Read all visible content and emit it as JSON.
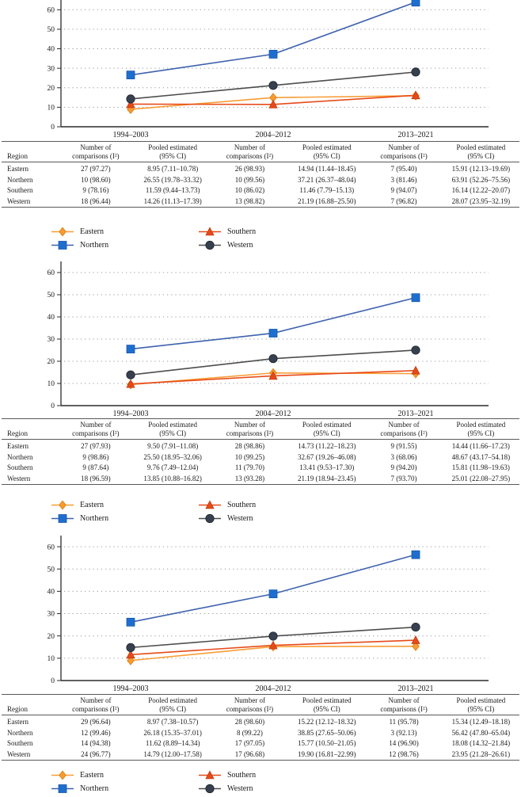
{
  "figure": {
    "background": "#ffffff",
    "x_axis_periods": [
      "1994–2003",
      "2004–2012",
      "2013–2021"
    ]
  },
  "series": [
    {
      "name": "Eastern",
      "marker": "diamond",
      "color": "#F79B30",
      "line_color": "#F89D35",
      "edge": "#D97E14"
    },
    {
      "name": "Northern",
      "marker": "square",
      "color": "#1E6ECF",
      "line_color": "#3E62AD",
      "edge": "#1857A8"
    },
    {
      "name": "Southern",
      "marker": "triangle",
      "color": "#E64A19",
      "line_color": "#E64A19",
      "edge": "#C13A0E"
    },
    {
      "name": "Western",
      "marker": "circle",
      "color": "#36404F",
      "line_color": "#4D4D4D",
      "edge": "#20262E"
    }
  ],
  "chart_data": [
    {
      "type": "line",
      "categories": [
        "1994–2003",
        "2004–2012",
        "2013–2021"
      ],
      "series": [
        {
          "name": "Eastern",
          "values": [
            8.95,
            14.94,
            15.91
          ]
        },
        {
          "name": "Northern",
          "values": [
            26.55,
            37.21,
            63.91
          ]
        },
        {
          "name": "Southern",
          "values": [
            11.59,
            11.46,
            16.14
          ]
        },
        {
          "name": "Western",
          "values": [
            14.26,
            21.19,
            28.07
          ]
        }
      ],
      "title": "",
      "xlabel": "",
      "ylabel": "",
      "yticks": [
        0,
        10,
        20,
        30,
        40,
        50,
        60
      ],
      "ylim": [
        0,
        65
      ],
      "grid": "dotted-horizontal",
      "legend_position": "below-table",
      "note": "top edge of plot cropped at image edge"
    },
    {
      "type": "line",
      "categories": [
        "1994–2003",
        "2004–2012",
        "2013–2021"
      ],
      "series": [
        {
          "name": "Eastern",
          "values": [
            9.5,
            14.73,
            14.44
          ]
        },
        {
          "name": "Northern",
          "values": [
            25.5,
            32.67,
            48.67
          ]
        },
        {
          "name": "Southern",
          "values": [
            9.76,
            13.41,
            15.81
          ]
        },
        {
          "name": "Western",
          "values": [
            13.85,
            21.19,
            25.01
          ]
        }
      ],
      "title": "",
      "xlabel": "",
      "ylabel": "",
      "yticks": [
        0,
        10,
        20,
        30,
        40,
        50,
        60
      ],
      "ylim": [
        0,
        65
      ],
      "grid": "dotted-horizontal",
      "legend_position": "below-table"
    },
    {
      "type": "line",
      "categories": [
        "1994–2003",
        "2004–2012",
        "2013–2021"
      ],
      "series": [
        {
          "name": "Eastern",
          "values": [
            8.97,
            15.22,
            15.34
          ]
        },
        {
          "name": "Northern",
          "values": [
            26.18,
            38.85,
            56.42
          ]
        },
        {
          "name": "Southern",
          "values": [
            11.62,
            15.77,
            18.08
          ]
        },
        {
          "name": "Western",
          "values": [
            14.79,
            19.9,
            23.95
          ]
        }
      ],
      "title": "",
      "xlabel": "",
      "ylabel": "",
      "yticks": [
        0,
        10,
        20,
        30,
        40,
        50,
        60
      ],
      "ylim": [
        0,
        65
      ],
      "grid": "dotted-horizontal",
      "legend_position": "below-table"
    }
  ],
  "table_headers": [
    {
      "l1": "Region",
      "l2": ""
    },
    {
      "l1": "Number of",
      "l2": "comparisons (I²)"
    },
    {
      "l1": "Pooled estimated",
      "l2": "(95% CI)"
    },
    {
      "l1": "Number of",
      "l2": "comparisons (I²)"
    },
    {
      "l1": "Pooled estimated",
      "l2": "(95% CI)"
    },
    {
      "l1": "Number of",
      "l2": "comparisons (I²)"
    },
    {
      "l1": "Pooled estimated",
      "l2": "(95% CI)"
    }
  ],
  "tables": [
    {
      "rows": [
        {
          "region": "Eastern",
          "cells": [
            "27 (97.27)",
            "8.95 (7.11–10.78)",
            "26 (98.93)",
            "14.94 (11.44–18.45)",
            "7 (95.40)",
            "15.91 (12.13–19.69)"
          ]
        },
        {
          "region": "Northern",
          "cells": [
            "10 (98.60)",
            "26.55 (19.78–33.32)",
            "10 (99.56)",
            "37.21 (26.37–48.04)",
            "3 (81.46)",
            "63.91 (52.26–75.56)"
          ]
        },
        {
          "region": "Southern",
          "cells": [
            "9 (78.16)",
            "11.59 (9.44–13.73)",
            "10 (86.02)",
            "11.46 (7.79–15.13)",
            "9 (94.07)",
            "16.14 (12.22–20.07)"
          ]
        },
        {
          "region": "Western",
          "cells": [
            "18 (96.44)",
            "14.26 (11.13–17.39)",
            "13 (98.82)",
            "21.19 (16.88–25.50)",
            "7 (96.82)",
            "28.07 (23.95–32.19)"
          ]
        }
      ]
    },
    {
      "rows": [
        {
          "region": "Eastern",
          "cells": [
            "27 (97.93)",
            "9.50 (7.91–11.08)",
            "28 (98.86)",
            "14.73 (11.22–18.23)",
            "9 (91.55)",
            "14.44 (11.66–17.23)"
          ]
        },
        {
          "region": "Northern",
          "cells": [
            "9 (98.86)",
            "25.50 (18.95–32.06)",
            "10 (99.25)",
            "32.67 (19.26–46.08)",
            "3 (68.06)",
            "48.67 (43.17–54.18)"
          ]
        },
        {
          "region": "Southern",
          "cells": [
            "9 (87.64)",
            "9.76 (7.49–12.04)",
            "11 (79.70)",
            "13.41 (9.53–17.30)",
            "9 (94.20)",
            "15.81 (11.98–19.63)"
          ]
        },
        {
          "region": "Western",
          "cells": [
            "18 (96.59)",
            "13.85 (10.88–16.82)",
            "13 (93.28)",
            "21.19 (18.94–23.45)",
            "7 (93.70)",
            "25.01 (22.08–27.95)"
          ]
        }
      ]
    },
    {
      "rows": [
        {
          "region": "Eastern",
          "cells": [
            "29 (96.64)",
            "8.97 (7.38–10.57)",
            "28 (98.60)",
            "15.22 (12.12–18.32)",
            "11 (95.78)",
            "15.34 (12.49–18.18)"
          ]
        },
        {
          "region": "Northern",
          "cells": [
            "12 (99.46)",
            "26.18 (15.35–37.01)",
            "8 (99.22)",
            "38.85 (27.65–50.06)",
            "3 (92.13)",
            "56.42 (47.80–65.04)"
          ]
        },
        {
          "region": "Southern",
          "cells": [
            "14 (94.38)",
            "11.62 (8.89–14.34)",
            "17 (97.05)",
            "15.77 (10.50–21.05)",
            "14 (96.90)",
            "18.08 (14.32–21.84)"
          ]
        },
        {
          "region": "Western",
          "cells": [
            "24 (96.77)",
            "14.79 (12.00–17.58)",
            "17 (96.68)",
            "19.90 (16.81–22.99)",
            "12 (98.76)",
            "23.95 (21.28–26.61)"
          ]
        }
      ]
    }
  ],
  "legend": {
    "columns": [
      [
        "Eastern",
        "Northern"
      ],
      [
        "Southern",
        "Western"
      ]
    ]
  }
}
